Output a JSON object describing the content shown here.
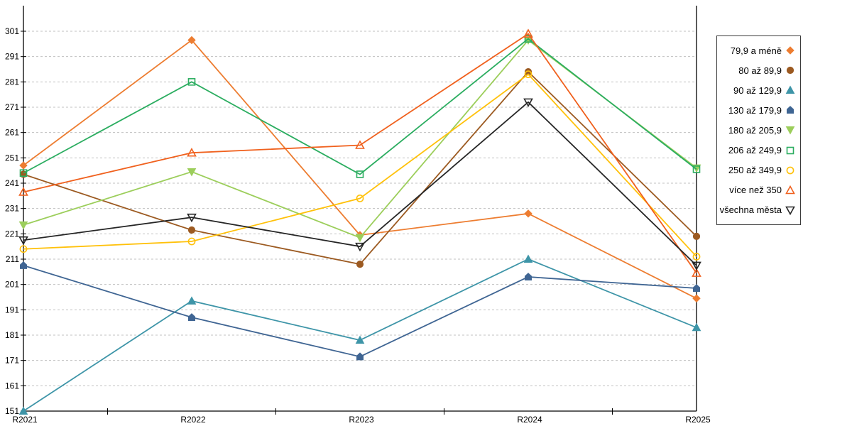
{
  "chart_data": {
    "type": "line",
    "title": "",
    "xlabel": "",
    "ylabel": "",
    "categories": [
      "R2021",
      "R2022",
      "R2023",
      "R2024",
      "R2025"
    ],
    "ylim": [
      151,
      301
    ],
    "ytick_step": 10,
    "yticks": [
      151,
      161,
      171,
      181,
      191,
      201,
      211,
      221,
      231,
      241,
      251,
      261,
      271,
      281,
      291,
      301
    ],
    "grid": "horizontal dashed gray",
    "legend_position": "right",
    "axis_color": "#000000",
    "gridline_color": "#c0c0c0",
    "series": [
      {
        "name": "79,9 a méně",
        "marker": "diamond",
        "fill": "filled",
        "color": "#ED7D31",
        "values": [
          248,
          297.5,
          220.5,
          229,
          195.5
        ]
      },
      {
        "name": "80 až 89,9",
        "marker": "circle",
        "fill": "filled",
        "color": "#9C5A21",
        "values": [
          244.5,
          222.5,
          209,
          285,
          220
        ]
      },
      {
        "name": "90 až 129,9",
        "marker": "triangle-up",
        "fill": "filled",
        "color": "#3E95A8",
        "values": [
          151,
          194.5,
          179,
          211,
          184
        ]
      },
      {
        "name": "130 až 179,9",
        "marker": "pentagon",
        "fill": "filled",
        "color": "#3F6593",
        "values": [
          208.5,
          188,
          172.5,
          204,
          199.5
        ]
      },
      {
        "name": "180 až 205,9",
        "marker": "triangle-down",
        "fill": "filled",
        "color": "#9CCE5B",
        "values": [
          224.5,
          245.5,
          219.5,
          297.5,
          247
        ]
      },
      {
        "name": "206 až 249,9",
        "marker": "square",
        "fill": "open",
        "color": "#2BAD60",
        "values": [
          245,
          281,
          244.5,
          298,
          246.5
        ]
      },
      {
        "name": "250 až 349,9",
        "marker": "circle",
        "fill": "open",
        "color": "#FFC10A",
        "values": [
          215,
          218,
          235,
          284,
          212
        ]
      },
      {
        "name": "více než 350",
        "marker": "triangle-up",
        "fill": "open",
        "color": "#F0611E",
        "values": [
          237.5,
          253,
          256,
          300,
          205.5
        ]
      },
      {
        "name": "všechna města",
        "marker": "triangle-down",
        "fill": "open",
        "color": "#262626",
        "values": [
          218.5,
          227.5,
          216,
          273,
          208.5
        ]
      }
    ]
  }
}
